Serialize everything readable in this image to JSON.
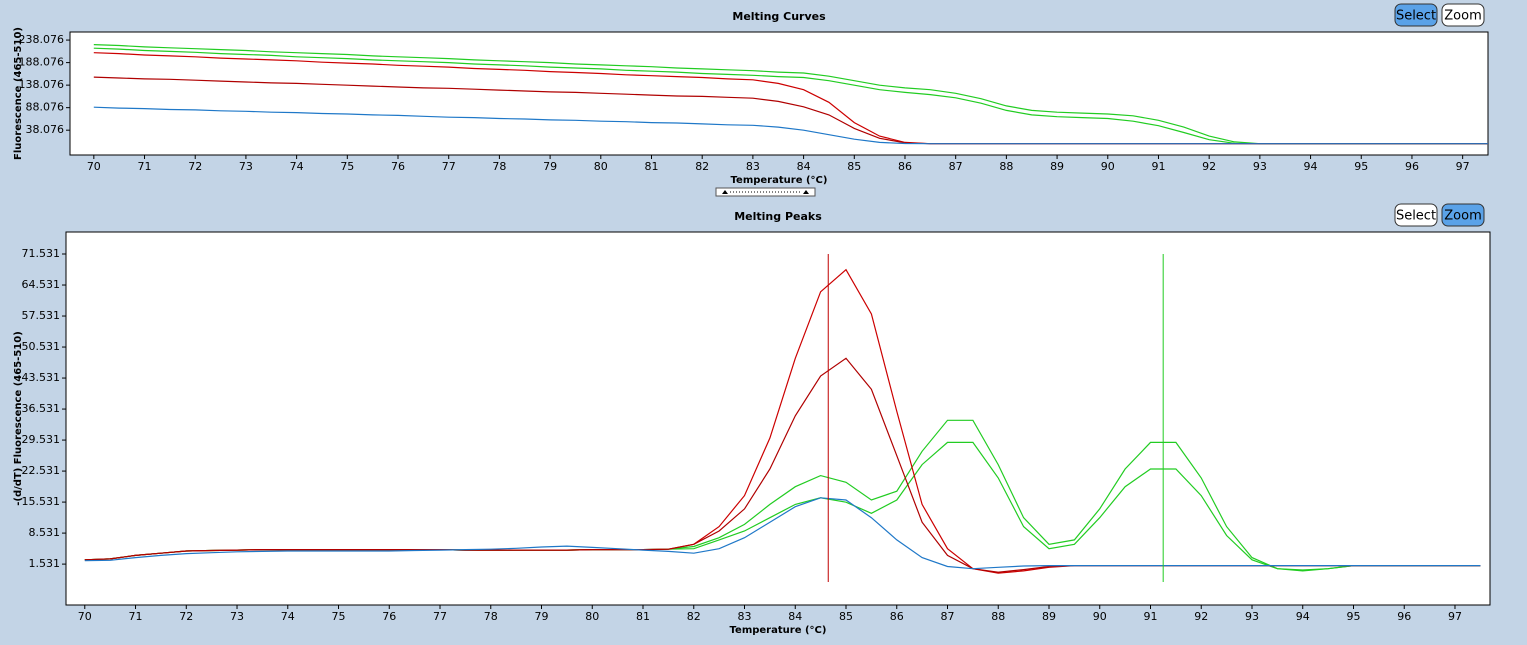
{
  "chart_data": [
    {
      "type": "line",
      "title": "Melting Curves",
      "xlabel": "Temperature (°C)",
      "ylabel": "Fluorescence (465-510)",
      "buttons": [
        "Select",
        "Zoom"
      ],
      "active_button": "Select",
      "xlim": [
        69.53,
        97.5
      ],
      "xticks": [
        70,
        71,
        72,
        73,
        74,
        75,
        76,
        77,
        78,
        79,
        80,
        81,
        82,
        83,
        84,
        85,
        86,
        87,
        88,
        89,
        90,
        91,
        92,
        93,
        94,
        95,
        96,
        97
      ],
      "ylim": [
        -17,
        256
      ],
      "yticks": [
        38.076,
        88.076,
        138.076,
        188.076,
        238.076
      ],
      "x": [
        70,
        70.5,
        71,
        71.5,
        72,
        72.5,
        73,
        73.5,
        74,
        74.5,
        75,
        75.5,
        76,
        76.5,
        77,
        77.5,
        78,
        78.5,
        79,
        79.5,
        80,
        80.5,
        81,
        81.5,
        82,
        82.5,
        83,
        83.5,
        84,
        84.5,
        85,
        85.5,
        86,
        86.5,
        87,
        87.5,
        88,
        88.5,
        89,
        89.5,
        90,
        90.5,
        91,
        91.5,
        92,
        92.5,
        93,
        93.5,
        94,
        94.5,
        95,
        95.5,
        96,
        96.5,
        97,
        97.5
      ],
      "series": [
        {
          "color": "#22cc22",
          "values": [
            228,
            226,
            223,
            221,
            219,
            217,
            215,
            212,
            210,
            208,
            206,
            203,
            201,
            199,
            197,
            194,
            192,
            190,
            188,
            185,
            183,
            181,
            179,
            176,
            174,
            172,
            170,
            167,
            165,
            158,
            148,
            138,
            132,
            128,
            120,
            108,
            92,
            82,
            78,
            76,
            74,
            70,
            60,
            45,
            25,
            12,
            8,
            8,
            8,
            8,
            8,
            8,
            8,
            8,
            8,
            8
          ]
        },
        {
          "color": "#22cc22",
          "values": [
            220,
            218,
            215,
            213,
            211,
            208,
            206,
            204,
            201,
            199,
            197,
            194,
            192,
            190,
            188,
            185,
            183,
            181,
            178,
            176,
            174,
            171,
            169,
            167,
            164,
            162,
            160,
            157,
            155,
            148,
            138,
            128,
            122,
            117,
            110,
            98,
            82,
            72,
            68,
            66,
            64,
            58,
            48,
            33,
            17,
            9,
            8,
            8,
            8,
            8,
            8,
            8,
            8,
            8,
            8,
            8
          ]
        },
        {
          "color": "#cc0000",
          "values": [
            210,
            208,
            205,
            203,
            201,
            198,
            196,
            194,
            192,
            189,
            187,
            185,
            182,
            180,
            178,
            175,
            173,
            171,
            168,
            166,
            164,
            161,
            159,
            157,
            155,
            152,
            150,
            142,
            128,
            100,
            55,
            25,
            11,
            8,
            8,
            8,
            8,
            8,
            8,
            8,
            8,
            8,
            8,
            8,
            8,
            8,
            8,
            8,
            8,
            8,
            8,
            8,
            8,
            8,
            8,
            8
          ]
        },
        {
          "color": "#b00000",
          "values": [
            156,
            154,
            152,
            151,
            149,
            147,
            145,
            143,
            142,
            140,
            138,
            136,
            134,
            132,
            131,
            129,
            127,
            125,
            123,
            122,
            120,
            118,
            116,
            114,
            113,
            111,
            109,
            102,
            90,
            72,
            42,
            20,
            10,
            8,
            8,
            8,
            8,
            8,
            8,
            8,
            8,
            8,
            8,
            8,
            8,
            8,
            8,
            8,
            8,
            8,
            8,
            8,
            8,
            8,
            8,
            8
          ]
        },
        {
          "color": "#1f78c8",
          "values": [
            89,
            87,
            86,
            84,
            83,
            81,
            80,
            78,
            77,
            75,
            74,
            72,
            71,
            69,
            67,
            66,
            64,
            63,
            61,
            60,
            58,
            57,
            55,
            54,
            52,
            50,
            49,
            45,
            38,
            28,
            18,
            11,
            8.5,
            8,
            8,
            8,
            8,
            8,
            8,
            8,
            8,
            8,
            8,
            8,
            8,
            8,
            8,
            8,
            8,
            8,
            8,
            8,
            8,
            8,
            8,
            8
          ]
        }
      ]
    },
    {
      "type": "line",
      "title": "Melting Peaks",
      "xlabel": "Temperature (°C)",
      "ylabel": "-(d/dT) Fluorescence (465-510)",
      "buttons": [
        "Select",
        "Zoom"
      ],
      "active_button": "Zoom",
      "xlim": [
        69.63,
        97.69
      ],
      "xticks": [
        70,
        71,
        72,
        73,
        74,
        75,
        76,
        77,
        78,
        79,
        80,
        81,
        82,
        83,
        84,
        85,
        86,
        87,
        88,
        89,
        90,
        91,
        92,
        93,
        94,
        95,
        96,
        97
      ],
      "ylim": [
        -7.7,
        76.5
      ],
      "yticks": [
        1.531,
        8.531,
        15.531,
        22.531,
        29.531,
        36.531,
        43.531,
        50.531,
        57.531,
        64.531,
        71.531
      ],
      "markers": [
        {
          "x": 84.65,
          "color": "#c00000"
        },
        {
          "x": 91.25,
          "color": "#22cc22"
        }
      ],
      "x": [
        70,
        70.5,
        71,
        71.5,
        72,
        72.5,
        73,
        73.5,
        74,
        74.5,
        75,
        75.5,
        76,
        76.5,
        77,
        77.5,
        78,
        78.5,
        79,
        79.5,
        80,
        80.5,
        81,
        81.5,
        82,
        82.5,
        83,
        83.5,
        84,
        84.5,
        85,
        85.5,
        86,
        86.5,
        87,
        87.5,
        88,
        88.5,
        89,
        89.5,
        90,
        90.5,
        91,
        91.5,
        92,
        92.5,
        93,
        93.5,
        94,
        94.5,
        95,
        95.5,
        96,
        96.5,
        97,
        97.5
      ],
      "series": [
        {
          "color": "#22cc22",
          "values": [
            2.5,
            2.7,
            3.5,
            4,
            4.5,
            4.6,
            4.7,
            4.8,
            4.8,
            4.8,
            4.8,
            4.8,
            4.8,
            4.8,
            4.8,
            4.7,
            4.7,
            4.7,
            4.7,
            4.7,
            4.8,
            4.8,
            4.8,
            4.9,
            5.5,
            7.5,
            10.5,
            15,
            19,
            21.5,
            20,
            16,
            18,
            27,
            34,
            34,
            24,
            12,
            6,
            7,
            14,
            23,
            29,
            29,
            21,
            10,
            3,
            0.5,
            0,
            0.5,
            1.2,
            1.2,
            1.2,
            1.2,
            1.2,
            1.2
          ]
        },
        {
          "color": "#22cc22",
          "values": [
            2.5,
            2.7,
            3.5,
            4,
            4.5,
            4.6,
            4.7,
            4.8,
            4.8,
            4.8,
            4.8,
            4.8,
            4.8,
            4.8,
            4.8,
            4.7,
            4.7,
            4.7,
            4.7,
            4.7,
            4.8,
            4.8,
            4.8,
            4.9,
            5,
            7,
            9,
            12,
            15,
            16.5,
            15.5,
            13,
            16,
            24,
            29,
            29,
            21,
            10,
            5,
            6,
            12,
            19,
            23,
            23,
            17,
            8,
            2.5,
            0.5,
            0.2,
            0.5,
            1.2,
            1.2,
            1.2,
            1.2,
            1.2,
            1.2
          ]
        },
        {
          "color": "#cc0000",
          "values": [
            2.5,
            2.7,
            3.5,
            4,
            4.5,
            4.6,
            4.7,
            4.8,
            4.8,
            4.8,
            4.8,
            4.8,
            4.8,
            4.8,
            4.8,
            4.7,
            4.7,
            4.7,
            4.7,
            4.7,
            4.8,
            4.8,
            4.8,
            4.9,
            6,
            10,
            17,
            30,
            48,
            63,
            68,
            58,
            36,
            15,
            5,
            0.5,
            -0.5,
            0,
            0.8,
            1.2,
            1.2,
            1.2,
            1.2,
            1.2,
            1.2,
            1.2,
            1.2,
            1.2,
            1.2,
            1.2,
            1.2,
            1.2,
            1.2,
            1.2,
            1.2,
            1.2
          ]
        },
        {
          "color": "#b00000",
          "values": [
            2.5,
            2.7,
            3.5,
            4,
            4.5,
            4.6,
            4.7,
            4.8,
            4.8,
            4.8,
            4.8,
            4.8,
            4.8,
            4.8,
            4.8,
            4.7,
            4.7,
            4.7,
            4.7,
            4.7,
            4.8,
            4.8,
            4.8,
            4.9,
            6,
            9,
            14,
            23,
            35,
            44,
            48,
            41,
            26,
            11,
            3.5,
            0.5,
            -0.3,
            0.3,
            1,
            1.2,
            1.2,
            1.2,
            1.2,
            1.2,
            1.2,
            1.2,
            1.2,
            1.2,
            1.2,
            1.2,
            1.2,
            1.2,
            1.2,
            1.2,
            1.2,
            1.2
          ]
        },
        {
          "color": "#1f78c8",
          "values": [
            2.3,
            2.4,
            3,
            3.5,
            3.9,
            4.1,
            4.3,
            4.4,
            4.5,
            4.5,
            4.5,
            4.5,
            4.5,
            4.6,
            4.7,
            4.8,
            4.9,
            5.1,
            5.4,
            5.6,
            5.3,
            5,
            4.7,
            4.4,
            4,
            5,
            7.5,
            11,
            14.5,
            16.5,
            16,
            12,
            7,
            3,
            1,
            0.5,
            0.8,
            1.1,
            1.2,
            1.2,
            1.2,
            1.2,
            1.2,
            1.2,
            1.2,
            1.2,
            1.2,
            1.2,
            1.2,
            1.2,
            1.2,
            1.2,
            1.2,
            1.2,
            1.2,
            1.2
          ]
        }
      ]
    }
  ]
}
